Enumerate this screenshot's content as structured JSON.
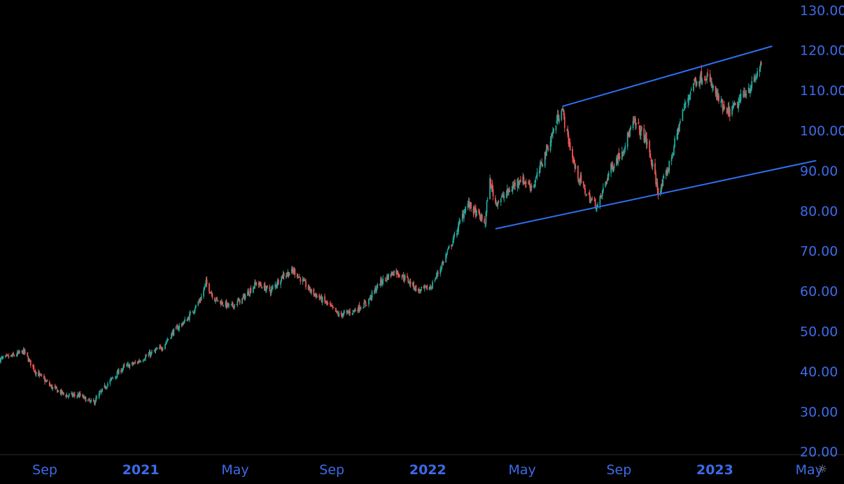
{
  "chart_data": {
    "type": "candlestick",
    "colors": {
      "up": "#26a69a",
      "down": "#ef5350",
      "axis_text": "#3d6be8",
      "trendline": "#2f6ff0",
      "background": "#000000"
    },
    "y_axis": {
      "position": "right",
      "ylim": [
        17.5,
        132.5
      ],
      "tick_labels": [
        "130.00",
        "120.00",
        "110.00",
        "100.00",
        "90.00",
        "80.00",
        "70.00",
        "60.00",
        "50.00",
        "40.00",
        "30.00",
        "20.00"
      ]
    },
    "x_axis": {
      "range": [
        "2020-07-06",
        "2023-05-31"
      ],
      "ticks": [
        {
          "date": "2020-09-01",
          "label": "Sep",
          "bold": false
        },
        {
          "date": "2021-01-01",
          "label": "2021",
          "bold": true
        },
        {
          "date": "2021-05-01",
          "label": "May",
          "bold": false
        },
        {
          "date": "2021-09-01",
          "label": "Sep",
          "bold": false
        },
        {
          "date": "2022-01-01",
          "label": "2022",
          "bold": true
        },
        {
          "date": "2022-05-01",
          "label": "May",
          "bold": false
        },
        {
          "date": "2022-09-01",
          "label": "Sep",
          "bold": false
        },
        {
          "date": "2023-01-01",
          "label": "2023",
          "bold": true
        },
        {
          "date": "2023-05-01",
          "label": "May",
          "bold": false
        }
      ]
    },
    "close_path": [
      [
        "2020-07-06",
        43
      ],
      [
        "2020-07-25",
        44
      ],
      [
        "2020-08-05",
        45
      ],
      [
        "2020-08-20",
        40
      ],
      [
        "2020-09-10",
        36
      ],
      [
        "2020-09-28",
        34
      ],
      [
        "2020-10-15",
        34
      ],
      [
        "2020-11-01",
        32
      ],
      [
        "2020-11-20",
        37
      ],
      [
        "2020-12-10",
        41
      ],
      [
        "2020-12-25",
        42
      ],
      [
        "2021-01-10",
        44
      ],
      [
        "2021-01-28",
        46
      ],
      [
        "2021-02-12",
        50
      ],
      [
        "2021-03-01",
        53
      ],
      [
        "2021-03-18",
        58
      ],
      [
        "2021-03-25",
        62
      ],
      [
        "2021-04-05",
        58
      ],
      [
        "2021-04-25",
        56
      ],
      [
        "2021-05-10",
        58
      ],
      [
        "2021-05-28",
        62
      ],
      [
        "2021-06-15",
        60
      ],
      [
        "2021-07-01",
        64
      ],
      [
        "2021-07-15",
        65
      ],
      [
        "2021-08-05",
        60
      ],
      [
        "2021-08-25",
        57
      ],
      [
        "2021-09-10",
        54
      ],
      [
        "2021-09-28",
        55
      ],
      [
        "2021-10-15",
        57
      ],
      [
        "2021-11-01",
        62
      ],
      [
        "2021-11-20",
        65
      ],
      [
        "2021-12-05",
        63
      ],
      [
        "2021-12-20",
        60
      ],
      [
        "2022-01-05",
        61
      ],
      [
        "2022-01-20",
        67
      ],
      [
        "2022-02-05",
        74
      ],
      [
        "2022-02-20",
        82
      ],
      [
        "2022-03-05",
        79
      ],
      [
        "2022-03-15",
        77
      ],
      [
        "2022-03-20",
        88
      ],
      [
        "2022-03-28",
        82
      ],
      [
        "2022-04-10",
        84
      ],
      [
        "2022-04-28",
        88
      ],
      [
        "2022-05-15",
        86
      ],
      [
        "2022-05-28",
        93
      ],
      [
        "2022-06-10",
        100
      ],
      [
        "2022-06-20",
        106
      ],
      [
        "2022-06-26",
        100
      ],
      [
        "2022-07-08",
        90
      ],
      [
        "2022-07-22",
        84
      ],
      [
        "2022-08-05",
        81
      ],
      [
        "2022-08-20",
        90
      ],
      [
        "2022-09-05",
        95
      ],
      [
        "2022-09-20",
        102
      ],
      [
        "2022-10-05",
        98
      ],
      [
        "2022-10-15",
        90
      ],
      [
        "2022-10-22",
        84
      ],
      [
        "2022-11-05",
        92
      ],
      [
        "2022-11-20",
        104
      ],
      [
        "2022-12-05",
        112
      ],
      [
        "2022-12-20",
        114
      ],
      [
        "2023-01-05",
        108
      ],
      [
        "2023-01-15",
        104
      ],
      [
        "2023-01-28",
        106
      ],
      [
        "2023-02-10",
        110
      ],
      [
        "2023-02-20",
        112
      ],
      [
        "2023-03-01",
        117
      ]
    ],
    "trendlines": [
      {
        "start": [
          "2022-03-28",
          75.5
        ],
        "end": [
          "2023-05-10",
          92.5
        ]
      },
      {
        "start": [
          "2022-06-21",
          106
        ],
        "end": [
          "2023-03-15",
          121
        ]
      }
    ]
  },
  "ui": {
    "settings_icon": "sun-gear-icon",
    "settings_glyph": "☼"
  }
}
